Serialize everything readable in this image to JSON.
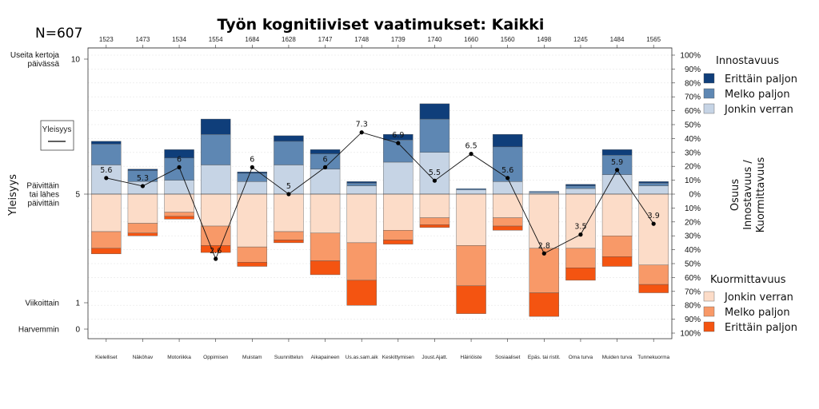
{
  "chart_data": {
    "type": "bar",
    "title": "Työn kognitiiviset vaatimukset: Kaikki",
    "n_label": "N=607",
    "categories": [
      "Kielelliset",
      "Näköhav",
      "Motoriikka",
      "Oppimisen",
      "Muistam",
      "Suunnittelun",
      "Aikapaineen",
      "Us.as.sam.aik",
      "Keskittymisen",
      "Joust.Ajatt.",
      "Häiriöiste",
      "Sosiaaliset",
      "Epäs. tai ristit.",
      "Oma turva",
      "Muiden turva",
      "Tunnekuorma"
    ],
    "counts": [
      "1523",
      "1473",
      "1534",
      "1554",
      "1684",
      "1628",
      "1747",
      "1748",
      "1739",
      "1740",
      "1660",
      "1560",
      "1498",
      "1245",
      "1484",
      "1565"
    ],
    "innostavuus_series": [
      {
        "name": "Jonkin verran",
        "color": "#c6d4e5",
        "values": [
          21,
          9,
          10,
          21,
          9,
          21,
          18,
          6,
          23,
          30,
          3,
          9,
          1,
          4,
          14,
          6
        ]
      },
      {
        "name": "Melko paljon",
        "color": "#5e87b3",
        "values": [
          15,
          8,
          16,
          22,
          6,
          17,
          11,
          2,
          16,
          24,
          1,
          25,
          1,
          2,
          14,
          2
        ]
      },
      {
        "name": "Erittäin paljon",
        "color": "#0f3e7a",
        "values": [
          2,
          1,
          6,
          11,
          1,
          4,
          3,
          1,
          4,
          11,
          0,
          9,
          0,
          1,
          4,
          1
        ]
      }
    ],
    "kuormittavuus_series": [
      {
        "name": "Jonkin verran",
        "color": "#fcdcc8",
        "values": [
          27,
          21,
          13,
          23,
          38,
          27,
          28,
          35,
          26,
          17,
          37,
          17,
          39,
          39,
          30,
          51
        ]
      },
      {
        "name": "Melko paljon",
        "color": "#f89968",
        "values": [
          12,
          7,
          3,
          14,
          11,
          6,
          20,
          27,
          7,
          5,
          29,
          6,
          32,
          14,
          15,
          14
        ]
      },
      {
        "name": "Erittäin paljon",
        "color": "#f45411",
        "values": [
          4,
          2,
          2,
          5,
          3,
          2,
          10,
          18,
          3,
          2,
          20,
          3,
          17,
          9,
          7,
          6
        ]
      }
    ],
    "frequency_line": {
      "name": "Yleisyys",
      "values": [
        5.6,
        5.3,
        6.0,
        2.6,
        6.0,
        5.0,
        6.0,
        7.3,
        6.9,
        5.5,
        6.5,
        5.6,
        2.8,
        3.5,
        5.9,
        3.9
      ],
      "labels": [
        "5.6",
        "5.3",
        "6",
        "2.6",
        "6",
        "5",
        "6",
        "7.3",
        "6.9",
        "5.5",
        "6.5",
        "5.6",
        "2.8",
        "3.5",
        "5.9",
        "3.9"
      ]
    },
    "left_axis": {
      "title": "Yleisyys",
      "ylim": [
        0,
        10
      ],
      "ticks": [
        {
          "value": 10,
          "label": "10",
          "desc": [
            "Useita kertoja",
            "päivässä"
          ]
        },
        {
          "value": 5,
          "label": "5",
          "desc": [
            "Päivittäin",
            "tai lähes",
            "päivittäin"
          ]
        },
        {
          "value": 1,
          "label": "1",
          "desc": [
            "Viikoittain"
          ]
        },
        {
          "value": 0,
          "label": "0",
          "desc": [
            "Harvemmin"
          ]
        }
      ]
    },
    "right_axis": {
      "title_lines": [
        "Osuus",
        "Innostavuus /",
        "Kuormittavuus"
      ],
      "ticks_up": [
        "0%",
        "10%",
        "20%",
        "30%",
        "40%",
        "50%",
        "60%",
        "70%",
        "80%",
        "90%",
        "100%"
      ],
      "ticks_down": [
        "10%",
        "20%",
        "30%",
        "40%",
        "50%",
        "60%",
        "70%",
        "80%",
        "90%",
        "100%"
      ]
    },
    "legend_innostavuus": {
      "title": "Innostavuus",
      "items": [
        "Erittäin paljon",
        "Melko paljon",
        "Jonkin verran"
      ]
    },
    "legend_kuormittavuus": {
      "title": "Kuormittavuus",
      "items": [
        "Jonkin verran",
        "Melko paljon",
        "Erittäin paljon"
      ]
    },
    "inner_legend": {
      "label": "Yleisyys"
    },
    "grid": true
  }
}
